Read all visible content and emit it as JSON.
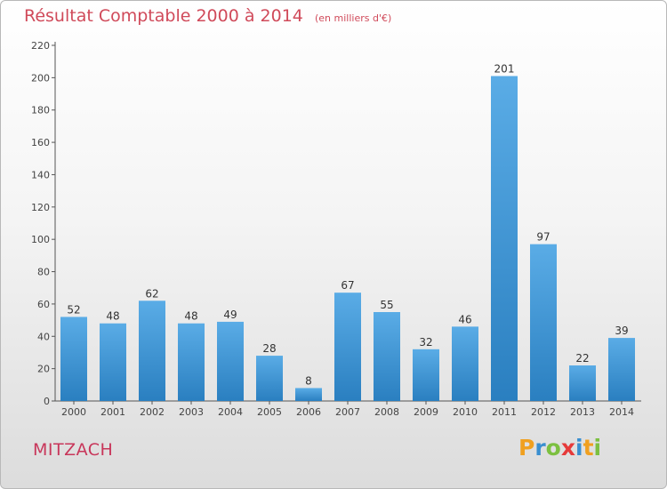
{
  "chart_data": {
    "type": "bar",
    "title": "Résultat Comptable 2000 à 2014",
    "subtitle": "(en milliers d'€)",
    "categories": [
      "2000",
      "2001",
      "2002",
      "2003",
      "2004",
      "2005",
      "2006",
      "2007",
      "2008",
      "2009",
      "2010",
      "2011",
      "2012",
      "2013",
      "2014"
    ],
    "values": [
      52,
      48,
      62,
      48,
      49,
      28,
      8,
      67,
      55,
      32,
      46,
      201,
      97,
      22,
      39
    ],
    "ylim": [
      0,
      220
    ],
    "yticks": [
      0,
      20,
      40,
      60,
      80,
      100,
      120,
      140,
      160,
      180,
      200,
      220
    ],
    "xlabel": "",
    "ylabel": "",
    "grid": false,
    "bar_color_top": "#5aace6",
    "bar_color_bottom": "#2a7fc0"
  },
  "footer": {
    "city": "MITZACH",
    "brand_letters": [
      "P",
      "r",
      "o",
      "x",
      "i",
      "t",
      "i"
    ],
    "brand_colors": [
      "#f0a020",
      "#3a8fd0",
      "#7cc040",
      "#e63a3a",
      "#3a8fd0",
      "#f0a020",
      "#7cc040"
    ]
  }
}
